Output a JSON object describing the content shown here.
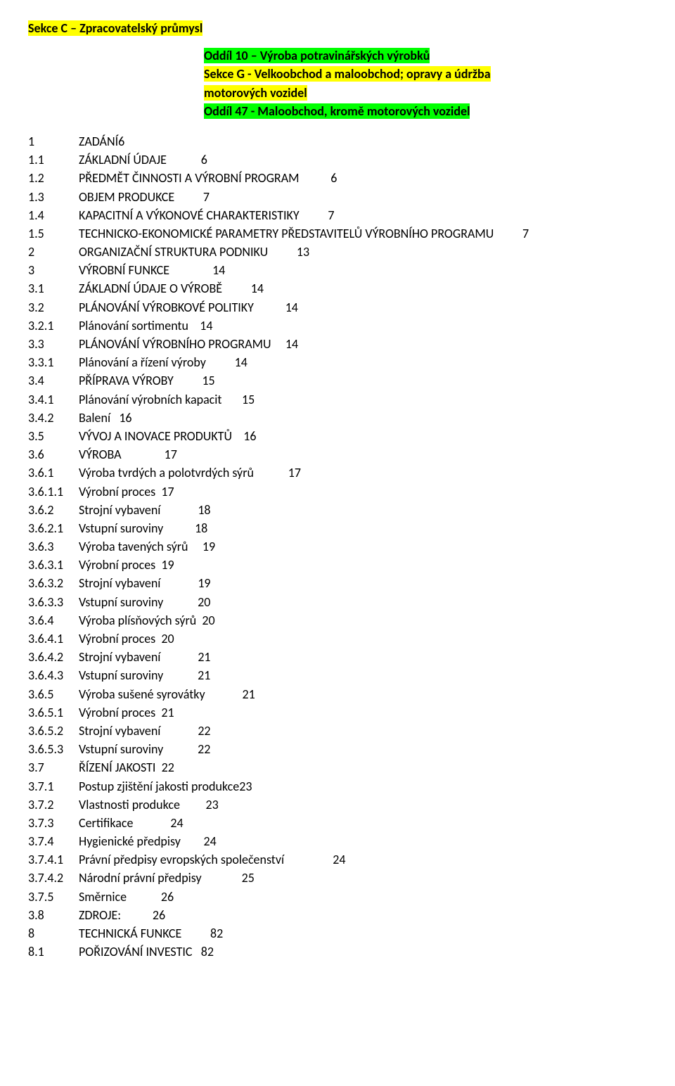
{
  "header": {
    "title": "Sekce C – Zpracovatelský průmysl",
    "lines": [
      {
        "text": "Oddíl 10 – Výroba potravinářských výrobků",
        "cls": "hl-green bold"
      },
      {
        "text": "Sekce G - Velkoobchod a maloobchod; opravy a údržba",
        "cls": "hl-yellow bold"
      },
      {
        "text": "motorových vozidel",
        "cls": "hl-yellow bold"
      },
      {
        "text": "Oddíl 47 - Maloobchod, kromě motorových vozidel",
        "cls": "hl-green bold"
      }
    ]
  },
  "toc": [
    {
      "n": "1",
      "t": "ZADÁNÍ",
      "p": "6",
      "gap": ""
    },
    {
      "n": "1.1",
      "t": "ZÁKLADNÍ ÚDAJE",
      "p": "6",
      "gap": "            "
    },
    {
      "n": "1.2",
      "t": "PŘEDMĚT ČINNOSTI A VÝROBNÍ PROGRAM",
      "p": "6",
      "gap": "           "
    },
    {
      "n": "1.3",
      "t": "OBJEM PRODUKCE",
      "p": "7",
      "gap": "          "
    },
    {
      "n": "1.4",
      "t": "KAPACITNÍ A VÝKONOVÉ CHARAKTERISTIKY",
      "p": "7",
      "gap": "          "
    },
    {
      "n": "1.5",
      "t": "TECHNICKO-EKONOMICKÉ PARAMETRY PŘEDSTAVITELŮ VÝROBNÍHO PROGRAMU",
      "p": "7",
      "gap": "          "
    },
    {
      "n": "2",
      "t": "ORGANIZAČNÍ STRUKTURA PODNIKU",
      "p": "13",
      "gap": "          "
    },
    {
      "n": "3",
      "t": "VÝROBNÍ FUNKCE",
      "p": "14",
      "gap": "               "
    },
    {
      "n": "3.1",
      "t": "ZÁKLADNÍ ÚDAJE O VÝROBĚ",
      "p": "14",
      "gap": "          "
    },
    {
      "n": "3.2",
      "t": "PLÁNOVÁNÍ VÝROBKOVÉ POLITIKY",
      "p": "14",
      "gap": "           "
    },
    {
      "n": "3.2.1",
      "t": "Plánování sortimentu",
      "p": "14",
      "gap": "    "
    },
    {
      "n": "3.3",
      "t": "PLÁNOVÁNÍ VÝROBNÍHO PROGRAMU",
      "p": "14",
      "gap": "     "
    },
    {
      "n": "3.3.1",
      "t": "Plánování a řízení výroby",
      "p": "14",
      "gap": "          "
    },
    {
      "n": "3.4",
      "t": "PŘÍPRAVA VÝROBY",
      "p": "15",
      "gap": "          "
    },
    {
      "n": "3.4.1",
      "t": "Plánování výrobních kapacit",
      "p": "15",
      "gap": "       "
    },
    {
      "n": "3.4.2",
      "t": "Balení",
      "p": "16",
      "gap": "   "
    },
    {
      "n": "3.5",
      "t": "VÝVOJ A INOVACE PRODUKTŮ",
      "p": "16",
      "gap": "    "
    },
    {
      "n": "3.6",
      "t": "VÝROBA",
      "p": "17",
      "gap": "               "
    },
    {
      "n": "3.6.1",
      "t": "Výroba tvrdých a polotvrdých sýrů",
      "p": "17",
      "gap": "            "
    },
    {
      "n": "3.6.1.1",
      "t": "Výrobní proces",
      "p": "17",
      "gap": "  "
    },
    {
      "n": "3.6.2",
      "t": "Strojní vybavení",
      "p": "18",
      "gap": "             "
    },
    {
      "n": "3.6.2.1",
      "t": "Vstupní suroviny",
      "p": "18",
      "gap": "           "
    },
    {
      "n": "3.6.3",
      "t": "Výroba tavených sýrů",
      "p": "19",
      "gap": "     "
    },
    {
      "n": "3.6.3.1",
      "t": "Výrobní proces",
      "p": "19",
      "gap": "  "
    },
    {
      "n": "3.6.3.2",
      "t": "Strojní vybavení",
      "p": "19",
      "gap": "             "
    },
    {
      "n": "3.6.3.3",
      "t": "Vstupní suroviny",
      "p": "20",
      "gap": "            "
    },
    {
      "n": "3.6.4",
      "t": "Výroba plísňových sýrů",
      "p": "20",
      "gap": "  "
    },
    {
      "n": "3.6.4.1",
      "t": "Výrobní proces",
      "p": "20",
      "gap": "  "
    },
    {
      "n": "3.6.4.2",
      "t": "Strojní vybavení",
      "p": "21",
      "gap": "             "
    },
    {
      "n": "3.6.4.3",
      "t": "Vstupní suroviny",
      "p": "21",
      "gap": "            "
    },
    {
      "n": "3.6.5",
      "t": "Výroba sušené syrovátky",
      "p": "21",
      "gap": "             "
    },
    {
      "n": "3.6.5.1",
      "t": "Výrobní proces",
      "p": "21",
      "gap": "  "
    },
    {
      "n": "3.6.5.2",
      "t": "Strojní vybavení",
      "p": "22",
      "gap": "             "
    },
    {
      "n": "3.6.5.3",
      "t": "Vstupní suroviny",
      "p": "22",
      "gap": "            "
    },
    {
      "n": "3.7",
      "t": "ŘÍZENÍ JAKOSTI",
      "p": "22",
      "gap": "  "
    },
    {
      "n": "3.7.1",
      "t": "Postup zjištění jakosti produkce",
      "p": "23",
      "gap": ""
    },
    {
      "n": "3.7.2",
      "t": "Vlastnosti produkce",
      "p": "23",
      "gap": "         "
    },
    {
      "n": "3.7.3",
      "t": "Certifikace",
      "p": "24",
      "gap": "             "
    },
    {
      "n": "3.7.4",
      "t": "Hygienické předpisy",
      "p": "24",
      "gap": "        "
    },
    {
      "n": "3.7.4.1",
      "t": "Právní předpisy evropských společenství",
      "p": "24",
      "gap": "                 "
    },
    {
      "n": "3.7.4.2",
      "t": "Národní právní předpisy",
      "p": "25",
      "gap": "              "
    },
    {
      "n": "3.7.5",
      "t": "Směrnice",
      "p": "26",
      "gap": "            "
    },
    {
      "n": "3.8",
      "t": "ZDROJE:",
      "p": "26",
      "gap": "           "
    },
    {
      "n": "8",
      "t": "TECHNICKÁ FUNKCE",
      "p": "82",
      "gap": "          "
    },
    {
      "n": "8.1",
      "t": "POŘIZOVÁNÍ INVESTIC",
      "p": "82",
      "gap": "   "
    }
  ]
}
